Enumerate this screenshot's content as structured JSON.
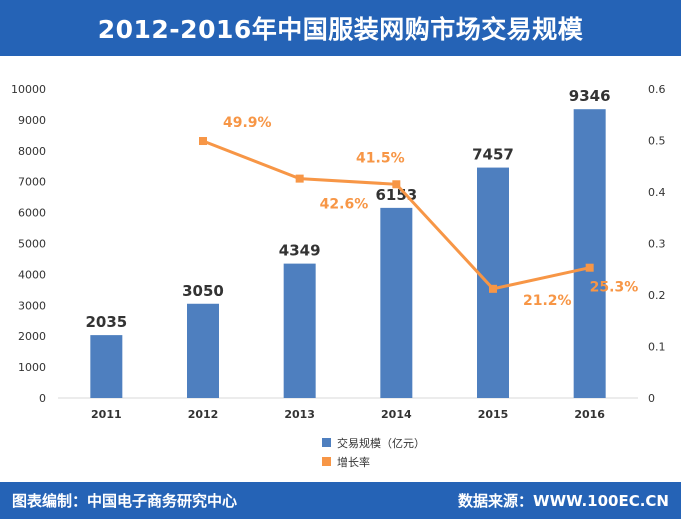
{
  "header": {
    "title": "2012-2016年中国服装网购市场交易规模"
  },
  "footer": {
    "left": "图表编制：中国电子商务研究中心",
    "right": "数据来源：WWW.100EC.CN"
  },
  "colors": {
    "header_bg": "#2563b6",
    "bar": "#4e7fbf",
    "line": "#f79646"
  },
  "chart_data": {
    "type": "bar",
    "categories": [
      "2011",
      "2012",
      "2013",
      "2014",
      "2015",
      "2016"
    ],
    "series": [
      {
        "name": "交易规模（亿元）",
        "type": "bar",
        "axis": "left",
        "values": [
          2035,
          3050,
          4349,
          6153,
          7457,
          9346
        ],
        "labels": [
          "2035",
          "3050",
          "4349",
          "6153",
          "7457",
          "9346"
        ]
      },
      {
        "name": "增长率",
        "type": "line",
        "axis": "right",
        "values": [
          null,
          0.499,
          0.426,
          0.415,
          0.212,
          0.253
        ],
        "labels": [
          "",
          "49.9%",
          "42.6%",
          "41.5%",
          "21.2%",
          "25.3%"
        ]
      }
    ],
    "y_left": {
      "ylim": [
        0,
        10000
      ],
      "ticks": [
        "0",
        "1000",
        "2000",
        "3000",
        "4000",
        "5000",
        "6000",
        "7000",
        "8000",
        "9000",
        "10000"
      ]
    },
    "y_right": {
      "ylim": [
        0,
        0.6
      ],
      "ticks": [
        "0",
        "0.1",
        "0.2",
        "0.3",
        "0.4",
        "0.5",
        "0.6"
      ]
    },
    "legend_position": "bottom-center",
    "grid": false
  }
}
